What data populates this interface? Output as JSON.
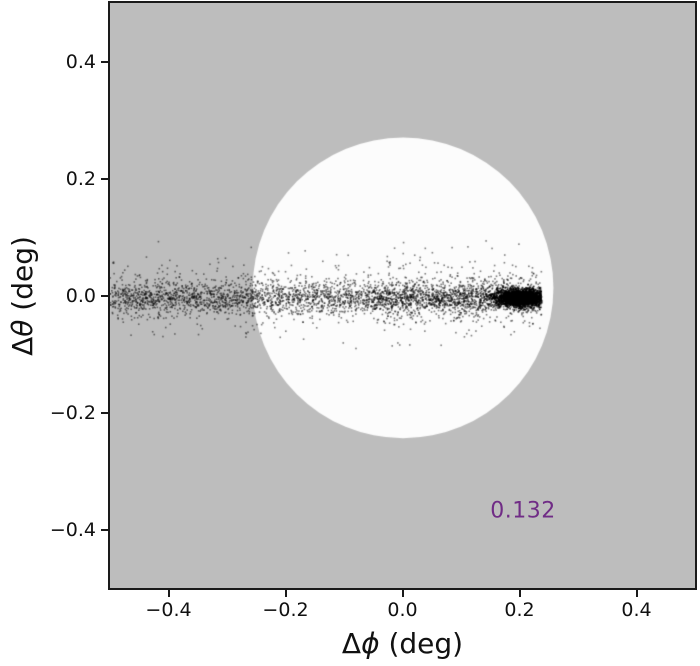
{
  "chart_data": {
    "type": "scatter",
    "title": "",
    "xlabel": "Δϕ (deg)",
    "ylabel": "Δθ (deg)",
    "xlabel_parts": {
      "delta": "Δ",
      "symbol": "ϕ",
      "unit": " (deg)"
    },
    "ylabel_parts": {
      "delta": "Δ",
      "symbol": "θ",
      "unit": " (deg)"
    },
    "xlim": [
      -0.5,
      0.5
    ],
    "ylim": [
      -0.5,
      0.5
    ],
    "grid": false,
    "legend": null,
    "x_ticks": [
      {
        "value": -0.4,
        "label": "−0.4"
      },
      {
        "value": -0.2,
        "label": "−0.2"
      },
      {
        "value": 0.0,
        "label": "0.0"
      },
      {
        "value": 0.2,
        "label": "0.2"
      },
      {
        "value": 0.4,
        "label": "0.4"
      }
    ],
    "y_ticks": [
      {
        "value": 0.4,
        "label": "0.4"
      },
      {
        "value": 0.2,
        "label": "0.2"
      },
      {
        "value": 0.0,
        "label": "0.0"
      },
      {
        "value": -0.2,
        "label": "−0.2"
      },
      {
        "value": -0.4,
        "label": "−0.4"
      }
    ],
    "axes_background": "#bdbdbd",
    "figure_background": "#ffffff",
    "frame_color": "#1a1a1a",
    "circle": {
      "center_x": 0.001,
      "center_y": 0.013,
      "radius": 0.257,
      "color": "#fcfcfc"
    },
    "annotation": {
      "text": "0.132",
      "x": 0.206,
      "y": -0.369,
      "color": "#702c86"
    },
    "scatter": {
      "color": "#000000",
      "marker_size_px": 1.6,
      "seed": 1234,
      "stream": {
        "n": 3400,
        "extra_n": 700,
        "x_min": -0.5,
        "x_max": 0.238,
        "extra_x_min": -0.05,
        "y_center": -0.004,
        "y_sigma_mix": [
          [
            0.72,
            0.013
          ],
          [
            0.94,
            0.024
          ],
          [
            1.0,
            0.042
          ]
        ],
        "y_clip": 0.095,
        "alpha": 0.5
      },
      "head": {
        "n": 2300,
        "x_mean": 0.202,
        "x_sigma": 0.021,
        "x_min": 0.12,
        "x_max": 0.238,
        "y_mean": -0.004,
        "y_sigma": 0.0068,
        "alpha": 0.8
      }
    }
  }
}
